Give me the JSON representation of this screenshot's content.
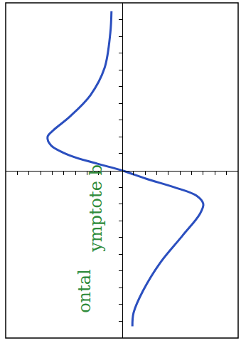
{
  "chart_data": {
    "type": "line",
    "x": [
      -0.9,
      -1.0,
      -1.5,
      -2.7,
      -4.5,
      -5.9,
      -6.4,
      -6.1,
      -4.5,
      -2.1,
      0,
      2.1,
      4.5,
      6.4,
      7.0,
      6.7,
      5.2,
      3.3,
      1.8,
      1.0,
      0.9
    ],
    "values": [
      9.5,
      8.2,
      6.1,
      4.5,
      3.2,
      2.4,
      2.0,
      1.5,
      0.9,
      0.4,
      0,
      -0.5,
      -1.0,
      -1.5,
      -2.0,
      -2.6,
      -3.9,
      -5.5,
      -7.2,
      -8.5,
      -9.3
    ],
    "color": "#2b4fbf",
    "xlim": [
      -10,
      10
    ],
    "ylim": [
      -10,
      10
    ],
    "xticks": [
      -9,
      -8,
      -7,
      -6,
      -5,
      -4,
      -3,
      -2,
      -1,
      1,
      2,
      3,
      4,
      5,
      6,
      7,
      8,
      9
    ],
    "yticks": [
      -9,
      -8,
      -7,
      -6,
      -5,
      -4,
      -3,
      -2,
      -1,
      1,
      2,
      3,
      4,
      5,
      6,
      7,
      8,
      9
    ],
    "tick_labels": false,
    "grid": false,
    "annotations": [
      "ontal",
      "ymptote b"
    ]
  }
}
